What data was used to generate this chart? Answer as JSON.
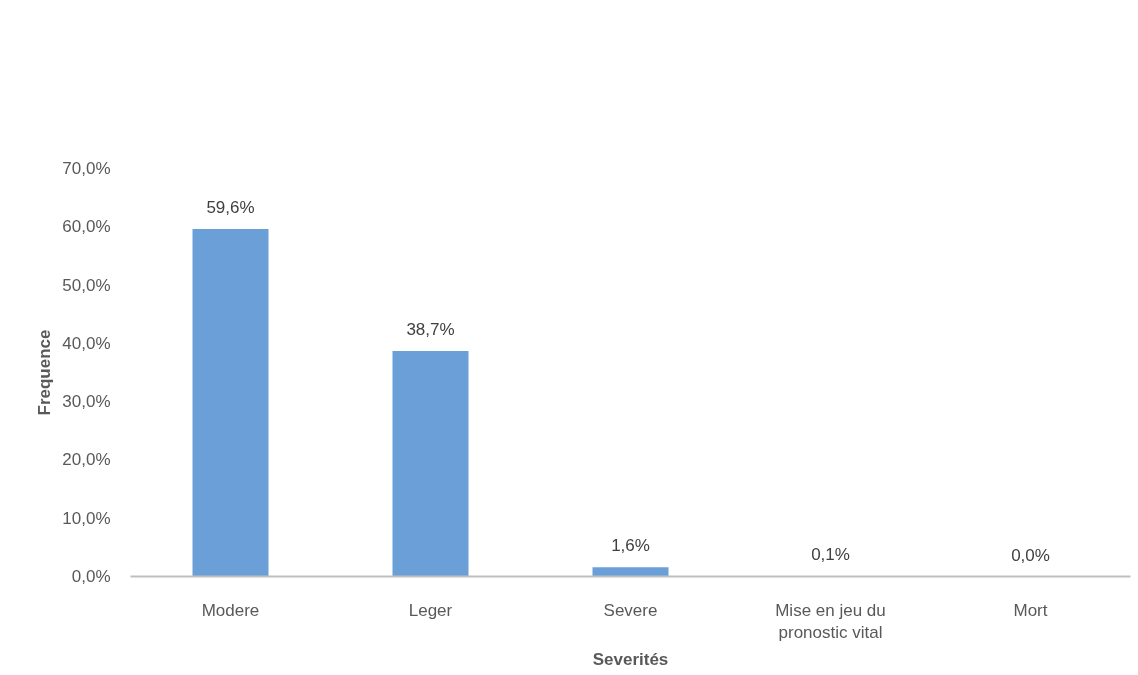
{
  "chart_data": {
    "type": "bar",
    "xlabel": "Severités",
    "ylabel": "Frequence",
    "categories": [
      "Modere",
      "Leger",
      "Severe",
      "Mise en jeu du pronostic vital",
      "Mort"
    ],
    "values": [
      59.6,
      38.7,
      1.6,
      0.1,
      0.0
    ],
    "color": "#6a9fd8",
    "value_labels": [
      "59,6%",
      "38,7%",
      "1,6%",
      "0,1%",
      "0,0%"
    ],
    "ylim": [
      0,
      70
    ],
    "yticks": [
      {
        "value": 0,
        "label": "0,0%"
      },
      {
        "value": 10,
        "label": "10,0%"
      },
      {
        "value": 20,
        "label": "20,0%"
      },
      {
        "value": 30,
        "label": "30,0%"
      },
      {
        "value": 40,
        "label": "40,0%"
      },
      {
        "value": 50,
        "label": "50,0%"
      },
      {
        "value": 60,
        "label": "60,0%"
      },
      {
        "value": 70,
        "label": "70,0%"
      }
    ],
    "grid": false
  }
}
